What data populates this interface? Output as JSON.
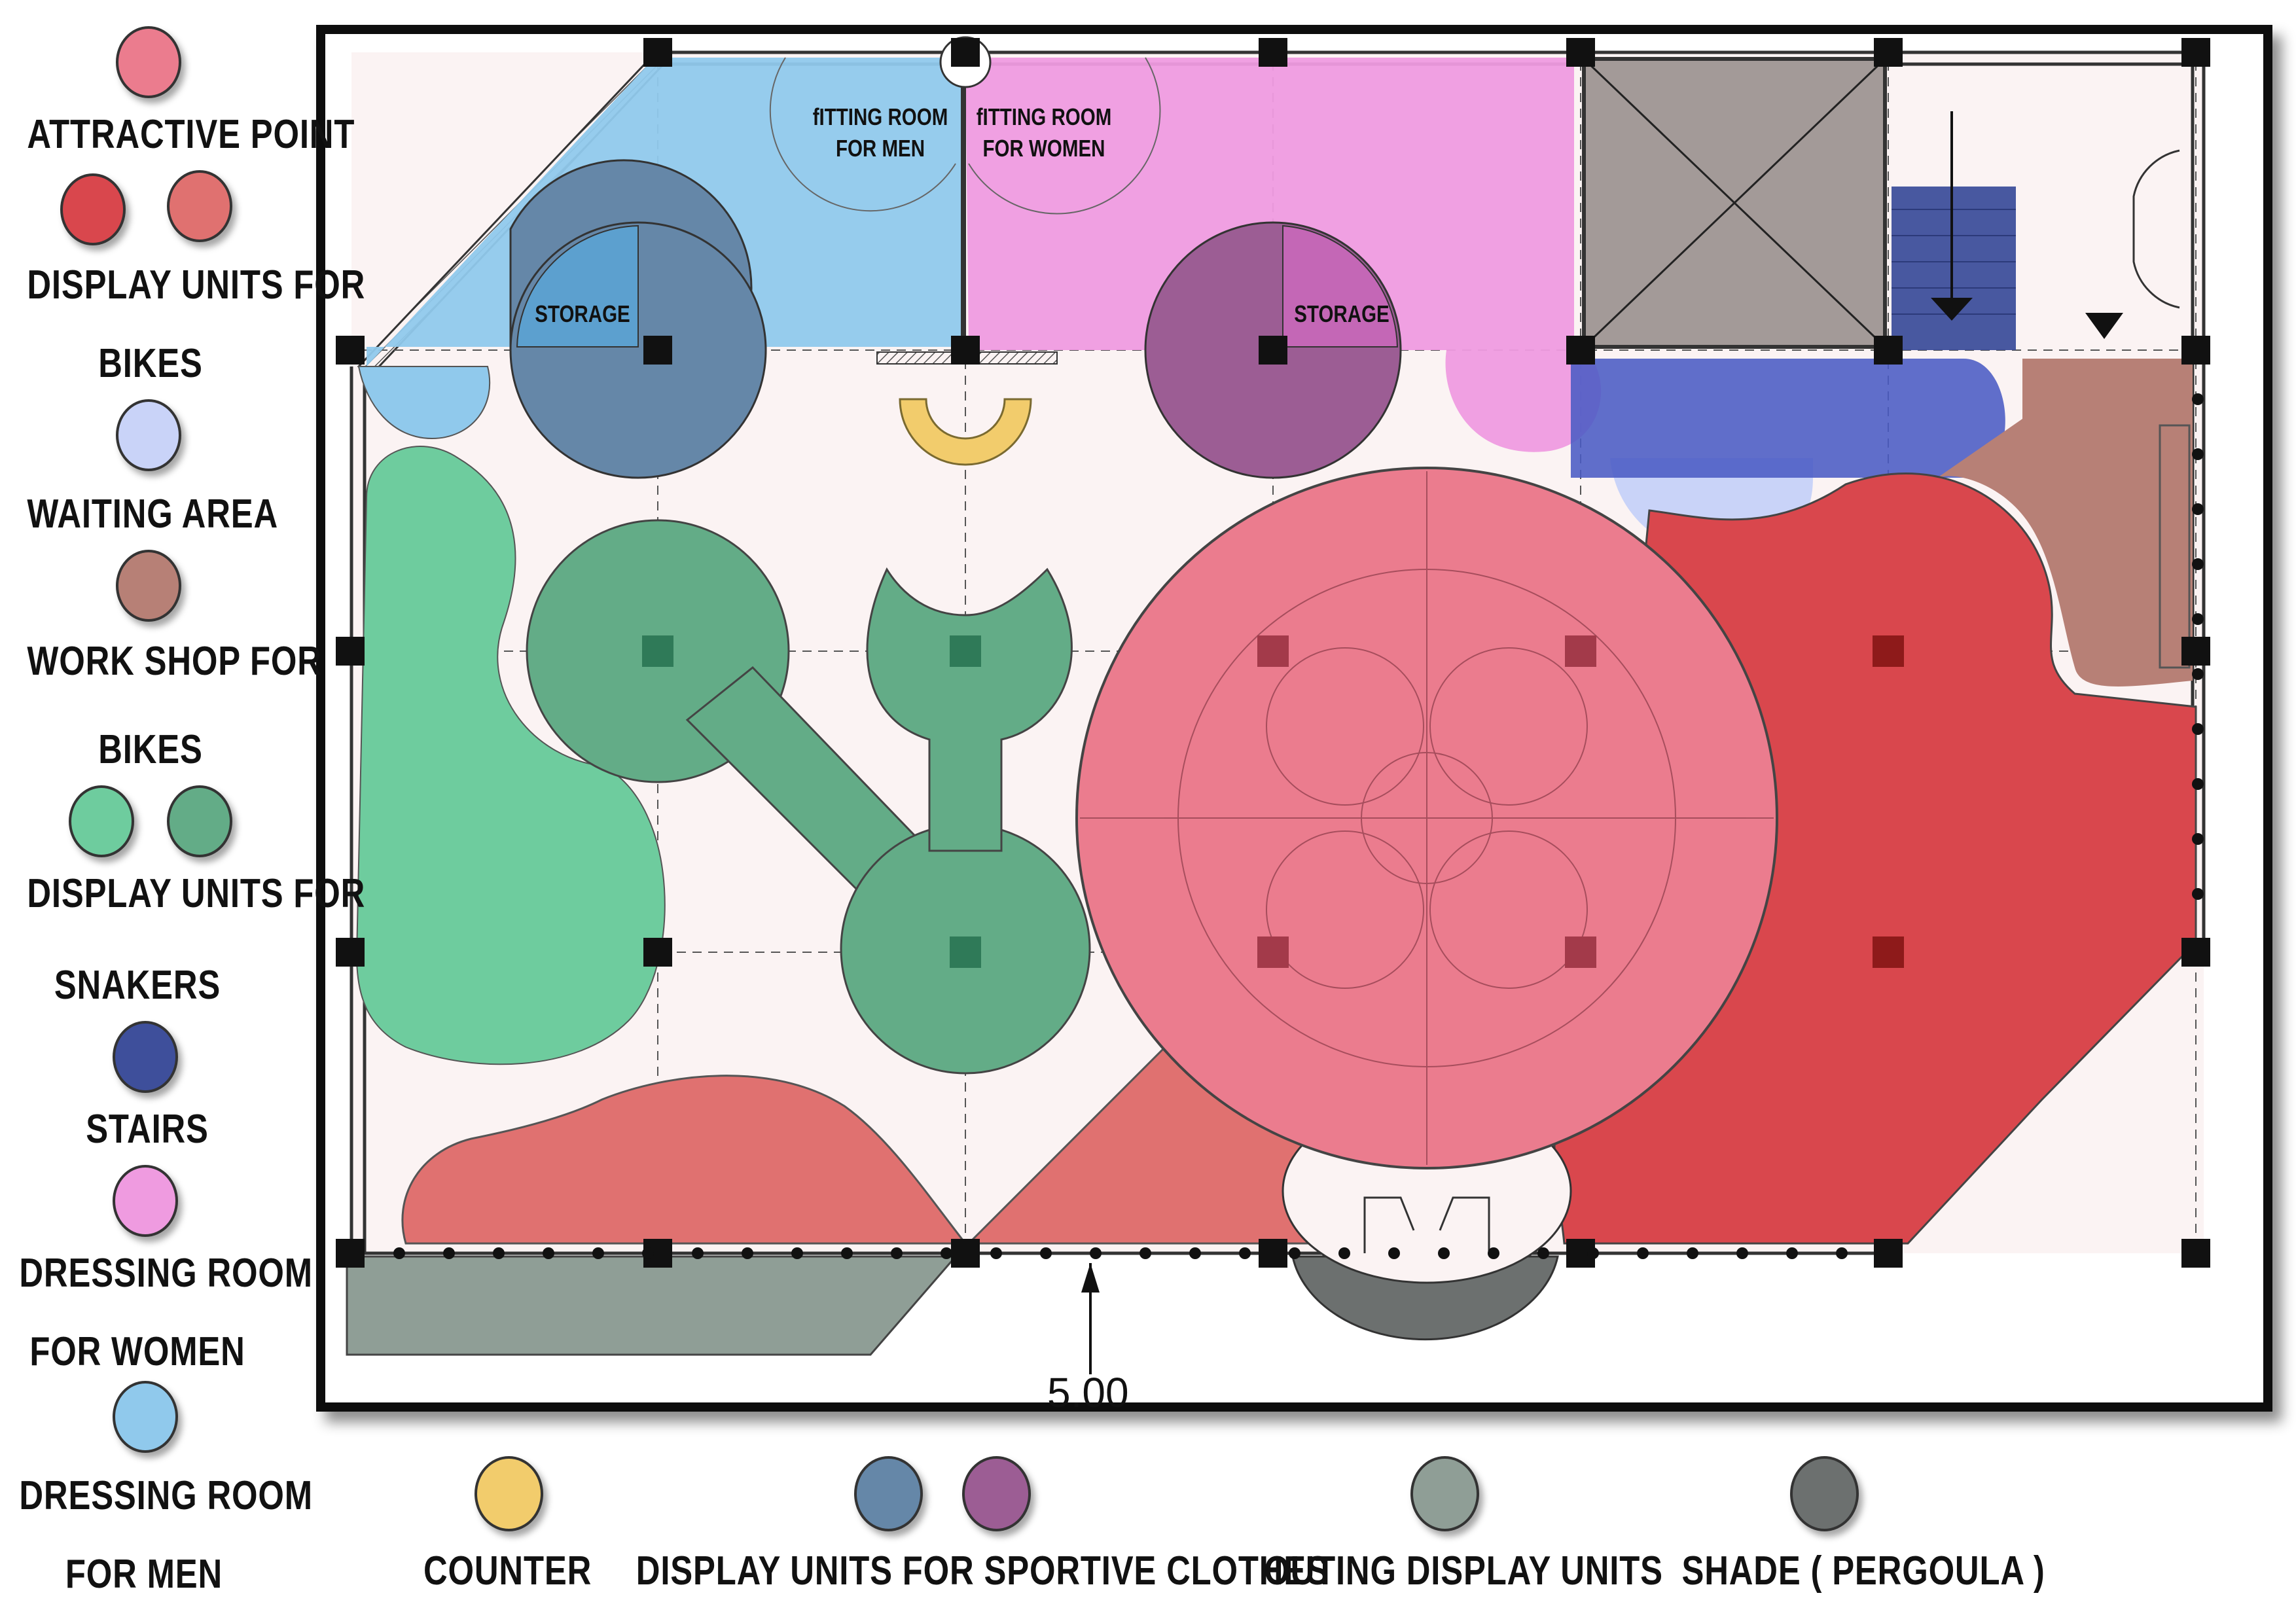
{
  "legend": {
    "items": [
      {
        "label": "ATTRACTIVE POINT",
        "colors": [
          "#EB7C8E"
        ]
      },
      {
        "label": "DISPLAY UNITS FOR BIKES",
        "colors": [
          "#D9474D",
          "#E07170"
        ]
      },
      {
        "label": "WAITING AREA",
        "colors": [
          "#C9D3F8"
        ]
      },
      {
        "label": "WORK SHOP FOR BIKES",
        "colors": [
          "#B78076"
        ]
      },
      {
        "label": "DISPLAY UNITS FOR SNAKERS",
        "colors": [
          "#6ECC9E",
          "#63AC87"
        ]
      },
      {
        "label": "STAIRS",
        "colors": [
          "#3E4F9B"
        ]
      },
      {
        "label": "DRESSING ROOM FOR WOMEN",
        "colors": [
          "#EF9BE0"
        ]
      },
      {
        "label": "DRESSING ROOM FOR MEN",
        "colors": [
          "#90C9EC"
        ]
      },
      {
        "label": "COUNTER",
        "colors": [
          "#F2CC6C"
        ]
      },
      {
        "label": "DISPLAY UNITS FOR SPORTIVE CLOTHES",
        "colors": [
          "#6587A8",
          "#9C5D94"
        ]
      },
      {
        "label": "OUTING DISPLAY UNITS",
        "colors": [
          "#8F9E96"
        ]
      },
      {
        "label": "SHADE ( PERGOULA )",
        "colors": [
          "#6C706F"
        ]
      }
    ],
    "lines": {
      "attractive": "ATTRACTIVE POINT",
      "bikes_1": "DISPLAY UNITS FOR",
      "bikes_2": "BIKES",
      "waiting": "WAITING AREA",
      "workshop_1": "WORK SHOP FOR",
      "workshop_2": "BIKES",
      "snakers_1": "DISPLAY UNITS FOR",
      "snakers_2": "SNAKERS",
      "stairs": "STAIRS",
      "women_1": "DRESSING ROOM",
      "women_2": "FOR WOMEN",
      "men_1": "DRESSING ROOM",
      "men_2": "FOR MEN",
      "counter": "COUNTER",
      "sportive": "DISPLAY UNITS FOR SPORTIVE CLOTHES",
      "outing": "OUTING DISPLAY UNITS",
      "shade": "SHADE ( PERGOULA )"
    }
  },
  "rooms": {
    "fitting_men_1": "fITTING ROOM",
    "fitting_men_2": "FOR MEN",
    "fitting_women_1": "fITTING ROOM",
    "fitting_women_2": "FOR WOMEN",
    "storage_left": "STORAGE",
    "storage_right": "STORAGE"
  },
  "dimension": "5.00",
  "colors": {
    "floor": "#FBF3F3",
    "frame": "#111111",
    "column": "#111111",
    "sneaker_dark": "#63AC87",
    "sneaker_light": "#6ECC9E",
    "attractive": "#EB7C8E",
    "bike_dark": "#D9474D",
    "bike_light": "#E07170",
    "men_room": "#90C9EC",
    "women_room": "#EF9BE0",
    "sport_blue": "#6587A8",
    "sport_purple": "#9C5D94",
    "stairs": "#3E4F9B",
    "waiting": "#C9D3F8",
    "workshop": "#B78076",
    "counter": "#F2CC6C",
    "outing": "#8F9E96",
    "shade": "#6C706F",
    "elevator": "#A39A98"
  }
}
